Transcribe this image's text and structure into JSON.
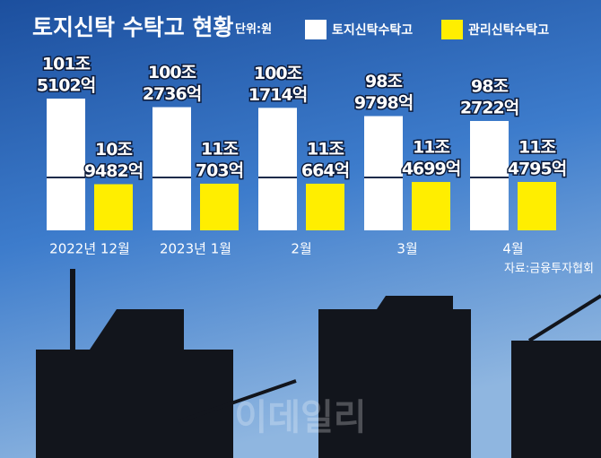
{
  "chart_data": {
    "type": "bar",
    "title": "토지신탁 수탁고 현황",
    "unit_note": "단위:원",
    "categories": [
      "2022년 12월",
      "2023년 1월",
      "2월",
      "3월",
      "4월"
    ],
    "series": [
      {
        "name": "토지신탁수탁고",
        "color": "#ffffff",
        "values": [
          1015102,
          1002736,
          1001714,
          989798,
          982722
        ],
        "value_labels": [
          [
            "101조",
            "5102억"
          ],
          [
            "100조",
            "2736억"
          ],
          [
            "100조",
            "1714억"
          ],
          [
            "98조",
            "9798억"
          ],
          [
            "98조",
            "2722억"
          ]
        ]
      },
      {
        "name": "관리신탁수탁고",
        "color": "#ffee00",
        "values": [
          109482,
          110703,
          110664,
          114699,
          114795
        ],
        "value_labels": [
          [
            "10조",
            "9482억"
          ],
          [
            "11조",
            "703억"
          ],
          [
            "11조",
            "664억"
          ],
          [
            "11조",
            "4699억"
          ],
          [
            "11조",
            "4795억"
          ]
        ]
      }
    ],
    "source": "자료:금융투자협회"
  },
  "watermark": "이데일리"
}
